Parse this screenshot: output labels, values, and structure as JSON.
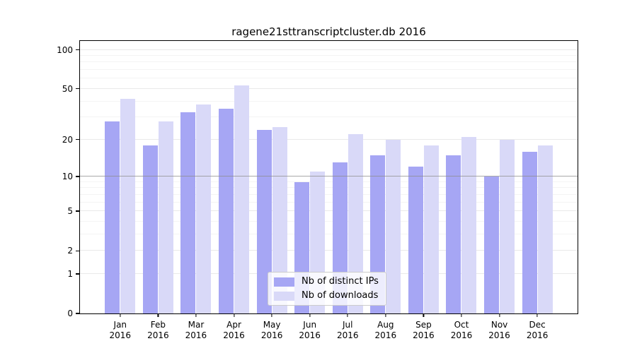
{
  "chart_data": {
    "type": "bar",
    "title": "ragene21sttranscriptcluster.db 2016",
    "categories": [
      "Jan",
      "Feb",
      "Mar",
      "Apr",
      "May",
      "Jun",
      "Jul",
      "Aug",
      "Sep",
      "Oct",
      "Nov",
      "Dec"
    ],
    "category_year": "2016",
    "series": [
      {
        "name": "Nb of distinct IPs",
        "color": "#a6a6f4",
        "values": [
          28,
          18,
          33,
          35,
          24,
          9,
          13,
          15,
          12,
          15,
          10,
          16
        ]
      },
      {
        "name": "Nb of downloads",
        "color": "#d9d9f8",
        "values": [
          42,
          28,
          38,
          53,
          25,
          11,
          22,
          20,
          18,
          21,
          20,
          18
        ]
      }
    ],
    "xlabel": "",
    "ylabel": "",
    "yscale": "log1p",
    "ylim": [
      0,
      117
    ],
    "yticks": [
      0,
      1,
      2,
      5,
      10,
      20,
      50,
      100
    ],
    "minor_yticks": [
      3,
      4,
      6,
      7,
      8,
      9,
      30,
      40,
      60,
      70,
      80,
      90
    ],
    "emphasized_gridline": 10,
    "grid": "on",
    "legend_position": "lower center",
    "spine_color": "#000000",
    "background_color": "#ffffff"
  }
}
